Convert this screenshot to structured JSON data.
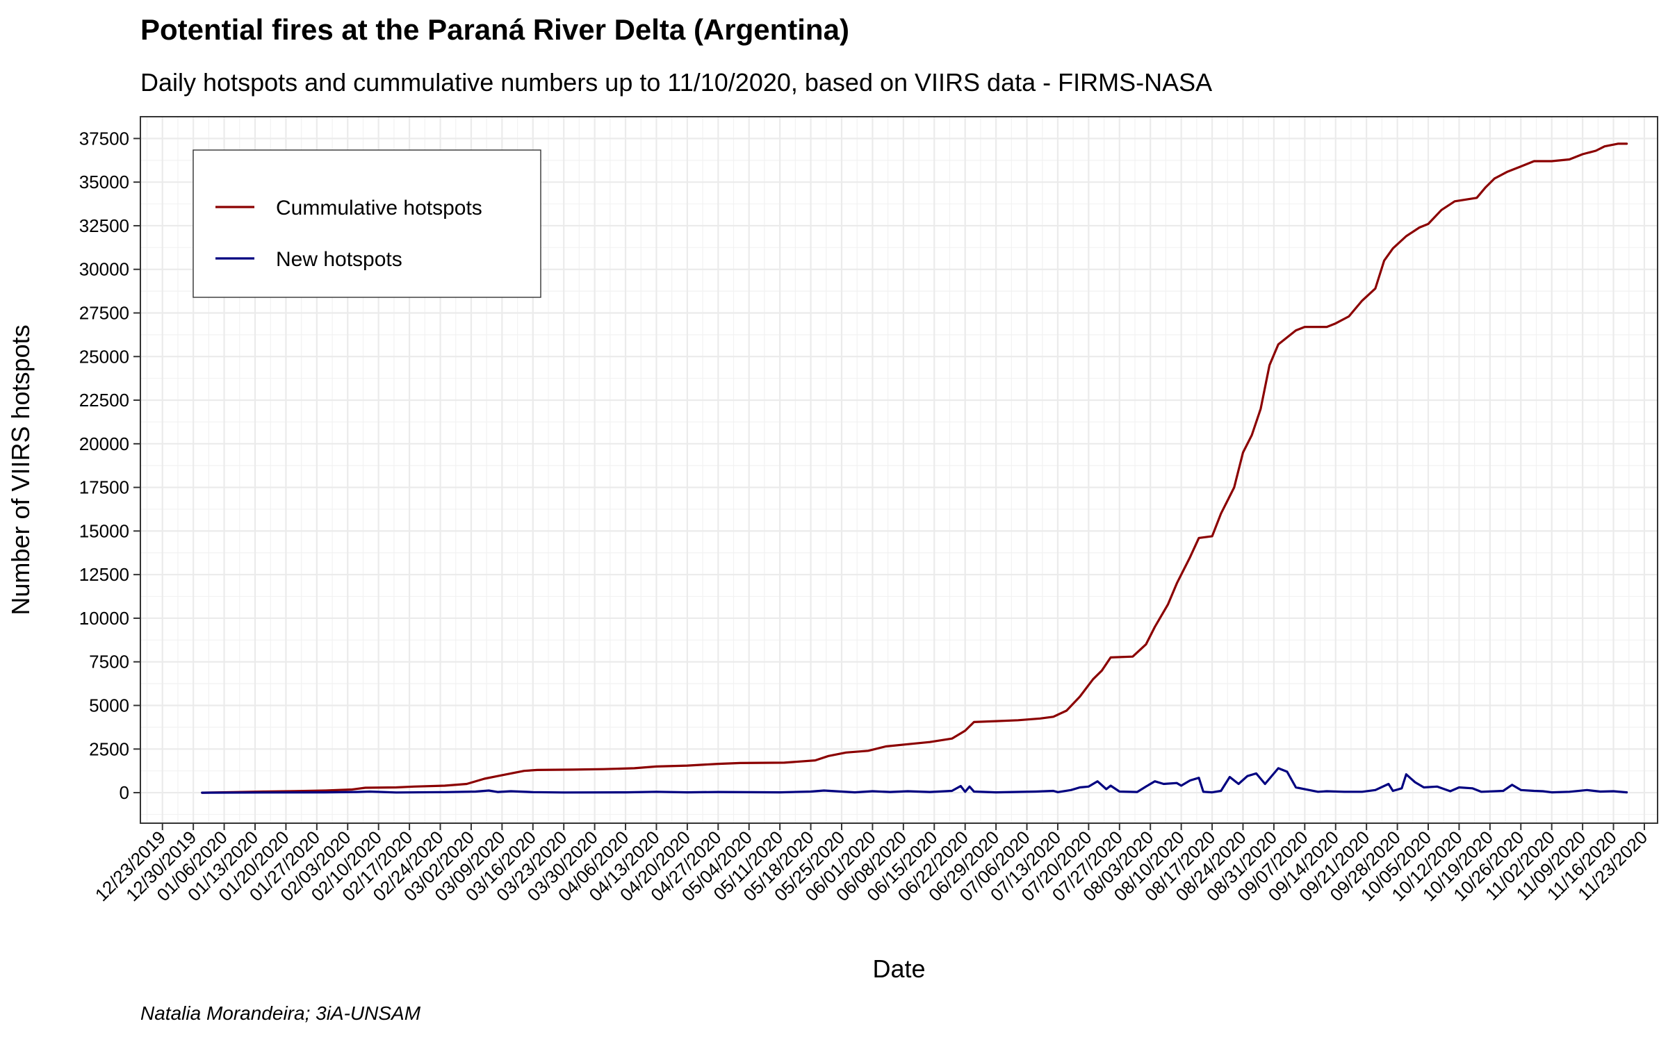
{
  "chart_data": {
    "type": "line",
    "title": "Potential fires at the Paraná River Delta (Argentina)",
    "subtitle": "Daily hotspots and cummulative numbers up to 11/10/2020, based on VIIRS data - FIRMS-NASA",
    "xlabel": "Date",
    "ylabel": "Number of VIIRS hotspots",
    "caption": "Natalia Morandeira; 3iA-UNSAM",
    "x_range": [
      "2019-12-18",
      "2020-11-26"
    ],
    "ylim": [
      -1750,
      38750
    ],
    "y_ticks": [
      0,
      2500,
      5000,
      7500,
      10000,
      12500,
      15000,
      17500,
      20000,
      22500,
      25000,
      27500,
      30000,
      32500,
      35000,
      37500
    ],
    "x_tick_dates": [
      "2019-12-23",
      "2019-12-30",
      "2020-01-06",
      "2020-01-13",
      "2020-01-20",
      "2020-01-27",
      "2020-02-03",
      "2020-02-10",
      "2020-02-17",
      "2020-02-24",
      "2020-03-02",
      "2020-03-09",
      "2020-03-16",
      "2020-03-23",
      "2020-03-30",
      "2020-04-06",
      "2020-04-13",
      "2020-04-20",
      "2020-04-27",
      "2020-05-04",
      "2020-05-11",
      "2020-05-18",
      "2020-05-25",
      "2020-06-01",
      "2020-06-08",
      "2020-06-15",
      "2020-06-22",
      "2020-06-29",
      "2020-07-06",
      "2020-07-13",
      "2020-07-20",
      "2020-07-27",
      "2020-08-03",
      "2020-08-10",
      "2020-08-17",
      "2020-08-24",
      "2020-08-31",
      "2020-09-07",
      "2020-09-14",
      "2020-09-21",
      "2020-09-28",
      "2020-10-05",
      "2020-10-12",
      "2020-10-19",
      "2020-10-26",
      "2020-11-02",
      "2020-11-09",
      "2020-11-16",
      "2020-11-23"
    ],
    "x_tick_labels": [
      "12/23/2019",
      "12/30/2019",
      "01/06/2020",
      "01/13/2020",
      "01/20/2020",
      "01/27/2020",
      "02/03/2020",
      "02/10/2020",
      "02/17/2020",
      "02/24/2020",
      "03/02/2020",
      "03/09/2020",
      "03/16/2020",
      "03/23/2020",
      "03/30/2020",
      "04/06/2020",
      "04/13/2020",
      "04/20/2020",
      "04/27/2020",
      "05/04/2020",
      "05/11/2020",
      "05/18/2020",
      "05/25/2020",
      "06/01/2020",
      "06/08/2020",
      "06/15/2020",
      "06/22/2020",
      "06/29/2020",
      "07/06/2020",
      "07/13/2020",
      "07/20/2020",
      "07/27/2020",
      "08/03/2020",
      "08/10/2020",
      "08/17/2020",
      "08/24/2020",
      "08/31/2020",
      "09/07/2020",
      "09/14/2020",
      "09/21/2020",
      "09/28/2020",
      "10/05/2020",
      "10/12/2020",
      "10/19/2020",
      "10/26/2020",
      "11/02/2020",
      "11/09/2020",
      "11/16/2020",
      "11/23/2020"
    ],
    "grid": true,
    "legend_position": "top-left",
    "series": [
      {
        "name": "Cummulative hotspots",
        "color": "#8B0000",
        "points": [
          [
            "2020-01-01",
            0
          ],
          [
            "2020-01-08",
            30
          ],
          [
            "2020-01-15",
            60
          ],
          [
            "2020-01-22",
            90
          ],
          [
            "2020-01-29",
            120
          ],
          [
            "2020-02-04",
            180
          ],
          [
            "2020-02-07",
            280
          ],
          [
            "2020-02-14",
            300
          ],
          [
            "2020-02-18",
            350
          ],
          [
            "2020-02-25",
            400
          ],
          [
            "2020-03-01",
            500
          ],
          [
            "2020-03-05",
            800
          ],
          [
            "2020-03-08",
            950
          ],
          [
            "2020-03-10",
            1050
          ],
          [
            "2020-03-14",
            1250
          ],
          [
            "2020-03-17",
            1300
          ],
          [
            "2020-03-25",
            1320
          ],
          [
            "2020-04-01",
            1350
          ],
          [
            "2020-04-08",
            1400
          ],
          [
            "2020-04-13",
            1500
          ],
          [
            "2020-04-20",
            1550
          ],
          [
            "2020-04-27",
            1650
          ],
          [
            "2020-05-02",
            1700
          ],
          [
            "2020-05-12",
            1720
          ],
          [
            "2020-05-19",
            1850
          ],
          [
            "2020-05-22",
            2100
          ],
          [
            "2020-05-26",
            2300
          ],
          [
            "2020-05-31",
            2400
          ],
          [
            "2020-06-04",
            2650
          ],
          [
            "2020-06-10",
            2800
          ],
          [
            "2020-06-14",
            2900
          ],
          [
            "2020-06-19",
            3100
          ],
          [
            "2020-06-22",
            3550
          ],
          [
            "2020-06-24",
            4050
          ],
          [
            "2020-06-29",
            4100
          ],
          [
            "2020-07-04",
            4150
          ],
          [
            "2020-07-09",
            4250
          ],
          [
            "2020-07-12",
            4350
          ],
          [
            "2020-07-15",
            4700
          ],
          [
            "2020-07-18",
            5500
          ],
          [
            "2020-07-21",
            6500
          ],
          [
            "2020-07-23",
            7000
          ],
          [
            "2020-07-25",
            7750
          ],
          [
            "2020-07-30",
            7800
          ],
          [
            "2020-08-02",
            8500
          ],
          [
            "2020-08-04",
            9500
          ],
          [
            "2020-08-07",
            10800
          ],
          [
            "2020-08-09",
            12000
          ],
          [
            "2020-08-12",
            13500
          ],
          [
            "2020-08-14",
            14600
          ],
          [
            "2020-08-17",
            14700
          ],
          [
            "2020-08-19",
            16000
          ],
          [
            "2020-08-22",
            17500
          ],
          [
            "2020-08-24",
            19500
          ],
          [
            "2020-08-26",
            20500
          ],
          [
            "2020-08-28",
            22000
          ],
          [
            "2020-08-30",
            24500
          ],
          [
            "2020-09-01",
            25700
          ],
          [
            "2020-09-05",
            26500
          ],
          [
            "2020-09-07",
            26700
          ],
          [
            "2020-09-12",
            26700
          ],
          [
            "2020-09-14",
            26900
          ],
          [
            "2020-09-17",
            27300
          ],
          [
            "2020-09-20",
            28200
          ],
          [
            "2020-09-23",
            28900
          ],
          [
            "2020-09-25",
            30500
          ],
          [
            "2020-09-27",
            31200
          ],
          [
            "2020-09-30",
            31900
          ],
          [
            "2020-10-03",
            32400
          ],
          [
            "2020-10-05",
            32600
          ],
          [
            "2020-10-08",
            33400
          ],
          [
            "2020-10-11",
            33900
          ],
          [
            "2020-10-16",
            34100
          ],
          [
            "2020-10-18",
            34700
          ],
          [
            "2020-10-20",
            35200
          ],
          [
            "2020-10-23",
            35600
          ],
          [
            "2020-10-26",
            35900
          ],
          [
            "2020-10-29",
            36200
          ],
          [
            "2020-11-02",
            36200
          ],
          [
            "2020-11-06",
            36300
          ],
          [
            "2020-11-09",
            36600
          ],
          [
            "2020-11-12",
            36800
          ],
          [
            "2020-11-14",
            37050
          ],
          [
            "2020-11-17",
            37200
          ],
          [
            "2020-11-19",
            37200
          ]
        ]
      },
      {
        "name": "New hotspots",
        "color": "#000080",
        "points": [
          [
            "2020-01-01",
            0
          ],
          [
            "2020-01-15",
            10
          ],
          [
            "2020-01-29",
            20
          ],
          [
            "2020-02-05",
            40
          ],
          [
            "2020-02-08",
            60
          ],
          [
            "2020-02-14",
            10
          ],
          [
            "2020-02-25",
            30
          ],
          [
            "2020-03-03",
            60
          ],
          [
            "2020-03-06",
            120
          ],
          [
            "2020-03-08",
            40
          ],
          [
            "2020-03-11",
            80
          ],
          [
            "2020-03-16",
            30
          ],
          [
            "2020-03-23",
            10
          ],
          [
            "2020-04-06",
            20
          ],
          [
            "2020-04-13",
            50
          ],
          [
            "2020-04-20",
            20
          ],
          [
            "2020-04-27",
            40
          ],
          [
            "2020-05-11",
            20
          ],
          [
            "2020-05-18",
            60
          ],
          [
            "2020-05-21",
            120
          ],
          [
            "2020-05-25",
            60
          ],
          [
            "2020-05-28",
            20
          ],
          [
            "2020-06-01",
            80
          ],
          [
            "2020-06-05",
            40
          ],
          [
            "2020-06-09",
            80
          ],
          [
            "2020-06-14",
            40
          ],
          [
            "2020-06-19",
            100
          ],
          [
            "2020-06-21",
            380
          ],
          [
            "2020-06-22",
            50
          ],
          [
            "2020-06-23",
            350
          ],
          [
            "2020-06-24",
            60
          ],
          [
            "2020-06-29",
            20
          ],
          [
            "2020-07-08",
            60
          ],
          [
            "2020-07-12",
            100
          ],
          [
            "2020-07-13",
            30
          ],
          [
            "2020-07-16",
            150
          ],
          [
            "2020-07-18",
            300
          ],
          [
            "2020-07-20",
            350
          ],
          [
            "2020-07-22",
            650
          ],
          [
            "2020-07-24",
            200
          ],
          [
            "2020-07-25",
            400
          ],
          [
            "2020-07-27",
            60
          ],
          [
            "2020-07-31",
            40
          ],
          [
            "2020-08-02",
            350
          ],
          [
            "2020-08-04",
            650
          ],
          [
            "2020-08-06",
            500
          ],
          [
            "2020-08-09",
            550
          ],
          [
            "2020-08-10",
            400
          ],
          [
            "2020-08-12",
            700
          ],
          [
            "2020-08-14",
            850
          ],
          [
            "2020-08-15",
            50
          ],
          [
            "2020-08-17",
            20
          ],
          [
            "2020-08-19",
            100
          ],
          [
            "2020-08-21",
            900
          ],
          [
            "2020-08-23",
            500
          ],
          [
            "2020-08-25",
            950
          ],
          [
            "2020-08-27",
            1100
          ],
          [
            "2020-08-29",
            500
          ],
          [
            "2020-09-01",
            1400
          ],
          [
            "2020-09-03",
            1200
          ],
          [
            "2020-09-05",
            300
          ],
          [
            "2020-09-08",
            150
          ],
          [
            "2020-09-10",
            50
          ],
          [
            "2020-09-12",
            80
          ],
          [
            "2020-09-16",
            50
          ],
          [
            "2020-09-20",
            50
          ],
          [
            "2020-09-23",
            150
          ],
          [
            "2020-09-26",
            500
          ],
          [
            "2020-09-27",
            100
          ],
          [
            "2020-09-29",
            250
          ],
          [
            "2020-09-30",
            1050
          ],
          [
            "2020-10-02",
            600
          ],
          [
            "2020-10-04",
            300
          ],
          [
            "2020-10-07",
            350
          ],
          [
            "2020-10-10",
            80
          ],
          [
            "2020-10-12",
            300
          ],
          [
            "2020-10-15",
            250
          ],
          [
            "2020-10-17",
            50
          ],
          [
            "2020-10-22",
            100
          ],
          [
            "2020-10-24",
            450
          ],
          [
            "2020-10-26",
            150
          ],
          [
            "2020-10-29",
            100
          ],
          [
            "2020-10-31",
            80
          ],
          [
            "2020-11-02",
            20
          ],
          [
            "2020-11-06",
            50
          ],
          [
            "2020-11-10",
            150
          ],
          [
            "2020-11-13",
            60
          ],
          [
            "2020-11-16",
            80
          ],
          [
            "2020-11-19",
            20
          ]
        ]
      }
    ]
  }
}
